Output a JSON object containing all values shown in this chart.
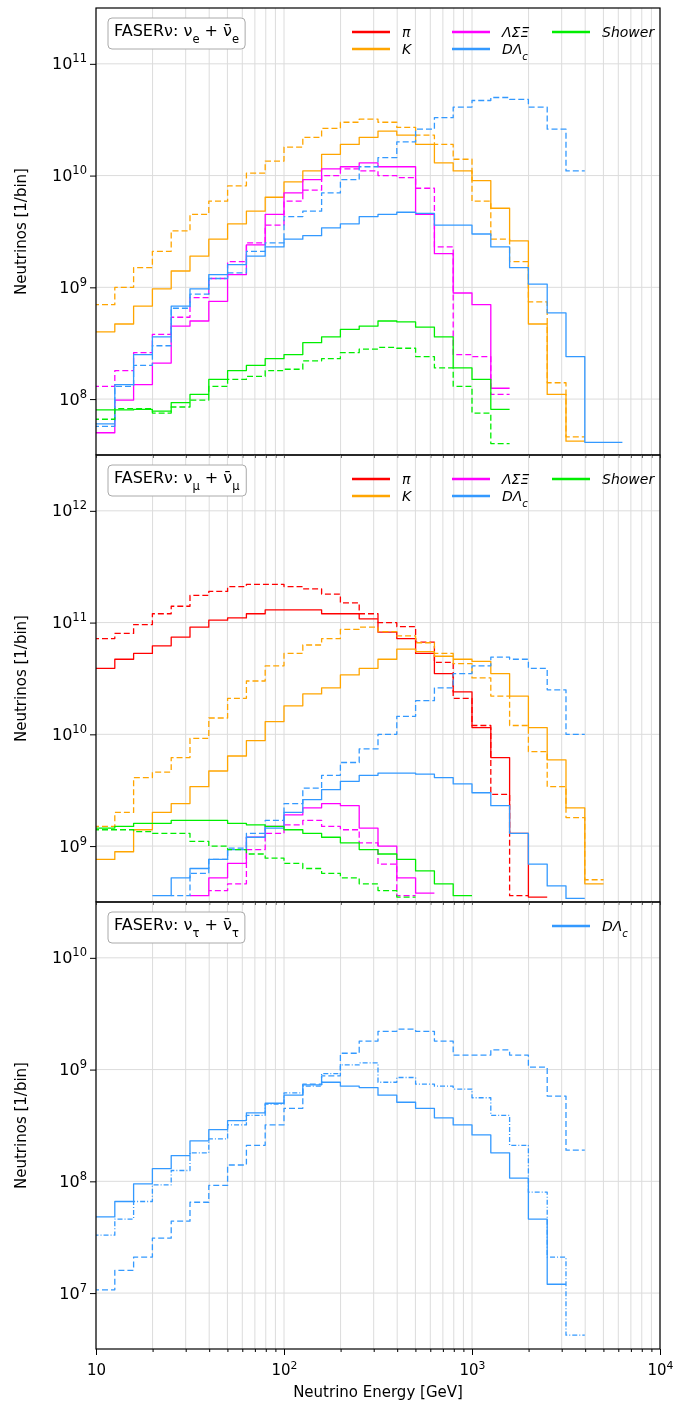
{
  "chart_data": [
    {
      "type": "step",
      "title": "FASERν: ν$_{e}$ + ν̄$_{e}$",
      "ylabel": "Neutrinos [1/bin]",
      "log": "xy",
      "grid": true,
      "legend": "top right",
      "tick_labels": "y",
      "x": [
        10,
        12.59,
        15.85,
        19.95,
        25.12,
        31.62,
        39.81,
        50.12,
        63.1,
        79.43,
        100,
        125.9,
        158.5,
        199.5,
        251.2,
        316.2,
        398.1,
        501.2,
        631,
        794.3,
        1000,
        1259,
        1585,
        1995,
        2512,
        3162,
        3981,
        5012,
        6310
      ],
      "xlim": [
        10,
        10000
      ],
      "ylim": [
        31600000.0,
        316000000000.0
      ],
      "xticks": [
        {
          "value": 10,
          "label": null
        },
        {
          "value": 20,
          "label": null
        },
        {
          "value": 30,
          "label": null
        },
        {
          "value": 40,
          "label": null
        },
        {
          "value": 50,
          "label": null
        },
        {
          "value": 60,
          "label": null
        },
        {
          "value": 70,
          "label": null
        },
        {
          "value": 80,
          "label": null
        },
        {
          "value": 90,
          "label": null
        },
        {
          "value": 100,
          "label": null
        },
        {
          "value": 200,
          "label": null
        },
        {
          "value": 300,
          "label": null
        },
        {
          "value": 400,
          "label": null
        },
        {
          "value": 500,
          "label": null
        },
        {
          "value": 600,
          "label": null
        },
        {
          "value": 700,
          "label": null
        },
        {
          "value": 800,
          "label": null
        },
        {
          "value": 900,
          "label": null
        },
        {
          "value": 1000,
          "label": null
        },
        {
          "value": 2000,
          "label": null
        },
        {
          "value": 3000,
          "label": null
        },
        {
          "value": 4000,
          "label": null
        },
        {
          "value": 5000,
          "label": null
        },
        {
          "value": 6000,
          "label": null
        },
        {
          "value": 7000,
          "label": null
        },
        {
          "value": 8000,
          "label": null
        },
        {
          "value": 9000,
          "label": null
        },
        {
          "value": 10000,
          "label": null
        }
      ],
      "yticks": [
        {
          "value": 100000000.0,
          "label": "10$^{8}$"
        },
        {
          "value": 1000000000.0,
          "label": "10$^{9}$"
        },
        {
          "value": 10000000000.0,
          "label": "10$^{10}$"
        },
        {
          "value": 100000000000.0,
          "label": "10$^{11}$"
        }
      ],
      "series": [
        {
          "name": "π",
          "color": "#ff0000",
          "line_style": "solid",
          "values": [
            null,
            null,
            null,
            null,
            null,
            null,
            null,
            null,
            null,
            null,
            null,
            null,
            null,
            null,
            null,
            null,
            null,
            null,
            null,
            null,
            null,
            null,
            null,
            null,
            null,
            null,
            null,
            null,
            null
          ]
        },
        {
          "name": "K",
          "color": "#ffa500",
          "line_style": "solid",
          "values": [
            400000000.0,
            470000000.0,
            680000000.0,
            970000000.0,
            1400000000.0,
            1900000000.0,
            2700000000.0,
            3700000000.0,
            4800000000.0,
            6400000000.0,
            8800000000.0,
            11000000000.0,
            15500000000.0,
            19000000000.0,
            22000000000.0,
            25000000000.0,
            23000000000.0,
            19000000000.0,
            13000000000.0,
            11000000000.0,
            9000000000.0,
            5100000000.0,
            2600000000.0,
            470000000.0,
            110000000.0,
            42000000.0,
            42000000.0,
            null,
            null
          ]
        },
        {
          "color": "#ffa500",
          "line_style": "dashed",
          "values": [
            700000000.0,
            1000000000.0,
            1500000000.0,
            2100000000.0,
            3200000000.0,
            4500000000.0,
            5900000000.0,
            8100000000.0,
            10500000000.0,
            13500000000.0,
            18000000000.0,
            22000000000.0,
            26500000000.0,
            30000000000.0,
            32000000000.0,
            30000000000.0,
            27000000000.0,
            23000000000.0,
            19000000000.0,
            14000000000.0,
            5900000000.0,
            2700000000.0,
            1700000000.0,
            740000000.0,
            140000000.0,
            46000000.0,
            46000000.0,
            null,
            null
          ]
        },
        {
          "name": "ΛΣΞ",
          "color": "#ff00ff",
          "line_style": "solid",
          "values": [
            50000000.0,
            98000000.0,
            135000000.0,
            210000000.0,
            450000000.0,
            500000000.0,
            750000000.0,
            1300000000.0,
            2400000000.0,
            4500000000.0,
            7000000000.0,
            9200000000.0,
            11500000000.0,
            12000000000.0,
            13000000000.0,
            12000000000.0,
            12000000000.0,
            4500000000.0,
            2000000000.0,
            890000000.0,
            700000000.0,
            125000000.0,
            125000000.0,
            null,
            null,
            null,
            null,
            null,
            null
          ]
        },
        {
          "color": "#ff00ff",
          "line_style": "dashed",
          "values": [
            130000000.0,
            180000000.0,
            260000000.0,
            380000000.0,
            540000000.0,
            810000000.0,
            1200000000.0,
            1700000000.0,
            2500000000.0,
            3600000000.0,
            5900000000.0,
            7400000000.0,
            10000000000.0,
            11500000000.0,
            11000000000.0,
            10000000000.0,
            9600000000.0,
            7700000000.0,
            2300000000.0,
            250000000.0,
            240000000.0,
            110000000.0,
            110000000.0,
            null,
            null,
            null,
            null,
            null,
            null
          ]
        },
        {
          "name": "DΛ$_{c}$",
          "color": "#3399ff",
          "line_style": "solid",
          "values": [
            60000000.0,
            135000000.0,
            250000000.0,
            360000000.0,
            680000000.0,
            970000000.0,
            1300000000.0,
            1600000000.0,
            1900000000.0,
            2300000000.0,
            2700000000.0,
            2900000000.0,
            3400000000.0,
            3700000000.0,
            4300000000.0,
            4500000000.0,
            4700000000.0,
            4600000000.0,
            3600000000.0,
            3600000000.0,
            3000000000.0,
            2300000000.0,
            1500000000.0,
            1070000000.0,
            590000000.0,
            240000000.0,
            41000000.0,
            41000000.0,
            41000000.0
          ]
        },
        {
          "color": "#3399ff",
          "line_style": "dashed",
          "values": [
            57000000.0,
            130000000.0,
            200000000.0,
            300000000.0,
            650000000.0,
            870000000.0,
            1200000000.0,
            1350000000.0,
            2100000000.0,
            2500000000.0,
            4300000000.0,
            4800000000.0,
            7000000000.0,
            9200000000.0,
            12000000000.0,
            14500000000.0,
            20000000000.0,
            26000000000.0,
            33000000000.0,
            41000000000.0,
            47000000000.0,
            50000000000.0,
            48000000000.0,
            41000000000.0,
            26000000000.0,
            11000000000.0,
            11000000000.0,
            null,
            null
          ]
        },
        {
          "name": "Shower",
          "color": "#00ee00",
          "line_style": "solid",
          "values": [
            80000000.0,
            80000000.0,
            81000000.0,
            78000000.0,
            93000000.0,
            110000000.0,
            150000000.0,
            180000000.0,
            200000000.0,
            230000000.0,
            250000000.0,
            320000000.0,
            360000000.0,
            420000000.0,
            450000000.0,
            500000000.0,
            490000000.0,
            440000000.0,
            360000000.0,
            190000000.0,
            150000000.0,
            81000000.0,
            81000000.0,
            null,
            null,
            null,
            null,
            null,
            null
          ]
        },
        {
          "color": "#00ee00",
          "line_style": "dashed",
          "values": [
            66000000.0,
            82000000.0,
            82000000.0,
            75000000.0,
            85000000.0,
            98000000.0,
            130000000.0,
            150000000.0,
            160000000.0,
            180000000.0,
            185000000.0,
            220000000.0,
            230000000.0,
            260000000.0,
            280000000.0,
            290000000.0,
            285000000.0,
            240000000.0,
            190000000.0,
            130000000.0,
            75000000.0,
            40000000.0,
            40000000.0,
            null,
            null,
            null,
            null,
            null,
            null
          ]
        }
      ]
    },
    {
      "type": "step",
      "title": "FASERν: ν$_{μ}$ + ν̄$_{μ}$",
      "ylabel": "Neutrinos [1/bin]",
      "log": "xy",
      "grid": true,
      "legend": "top right",
      "tick_labels": "y",
      "x": [
        10,
        12.59,
        15.85,
        19.95,
        25.12,
        31.62,
        39.81,
        50.12,
        63.1,
        79.43,
        100,
        125.9,
        158.5,
        199.5,
        251.2,
        316.2,
        398.1,
        501.2,
        631,
        794.3,
        1000,
        1259,
        1585,
        1995,
        2512,
        3162,
        3981,
        5012
      ],
      "xlim": [
        10,
        10000
      ],
      "ylim": [
        316000000.0,
        3160000000000.0
      ],
      "xticks": [
        {
          "value": 10,
          "label": null
        },
        {
          "value": 20,
          "label": null
        },
        {
          "value": 30,
          "label": null
        },
        {
          "value": 40,
          "label": null
        },
        {
          "value": 50,
          "label": null
        },
        {
          "value": 60,
          "label": null
        },
        {
          "value": 70,
          "label": null
        },
        {
          "value": 80,
          "label": null
        },
        {
          "value": 90,
          "label": null
        },
        {
          "value": 100,
          "label": null
        },
        {
          "value": 200,
          "label": null
        },
        {
          "value": 300,
          "label": null
        },
        {
          "value": 400,
          "label": null
        },
        {
          "value": 500,
          "label": null
        },
        {
          "value": 600,
          "label": null
        },
        {
          "value": 700,
          "label": null
        },
        {
          "value": 800,
          "label": null
        },
        {
          "value": 900,
          "label": null
        },
        {
          "value": 1000,
          "label": null
        },
        {
          "value": 2000,
          "label": null
        },
        {
          "value": 3000,
          "label": null
        },
        {
          "value": 4000,
          "label": null
        },
        {
          "value": 5000,
          "label": null
        },
        {
          "value": 6000,
          "label": null
        },
        {
          "value": 7000,
          "label": null
        },
        {
          "value": 8000,
          "label": null
        },
        {
          "value": 9000,
          "label": null
        },
        {
          "value": 10000,
          "label": null
        }
      ],
      "yticks": [
        {
          "value": 1000000000.0,
          "label": "10$^{9}$"
        },
        {
          "value": 10000000000.0,
          "label": "10$^{10}$"
        },
        {
          "value": 100000000000.0,
          "label": "10$^{11}$"
        },
        {
          "value": 1000000000000.0,
          "label": "10$^{12}$"
        }
      ],
      "series": [
        {
          "name": "π",
          "color": "#ff0000",
          "line_style": "solid",
          "values": [
            39000000000.0,
            47000000000.0,
            53000000000.0,
            62000000000.0,
            74000000000.0,
            91000000000.0,
            105000000000.0,
            110000000000.0,
            120000000000.0,
            130000000000.0,
            130000000000.0,
            130000000000.0,
            120000000000.0,
            120000000000.0,
            108000000000.0,
            82000000000.0,
            72000000000.0,
            53000000000.0,
            35000000000.0,
            24000000000.0,
            11500000000.0,
            6200000000.0,
            1300000000.0,
            350000000.0,
            350000000.0,
            null,
            null,
            null
          ]
        },
        {
          "color": "#ff0000",
          "line_style": "dashed",
          "values": [
            72000000000.0,
            80000000000.0,
            96000000000.0,
            120000000000.0,
            140000000000.0,
            175000000000.0,
            190000000000.0,
            210000000000.0,
            220000000000.0,
            220000000000.0,
            210000000000.0,
            200000000000.0,
            180000000000.0,
            150000000000.0,
            120000000000.0,
            100000000000.0,
            92000000000.0,
            67000000000.0,
            44000000000.0,
            21000000000.0,
            12000000000.0,
            2900000000.0,
            360000000.0,
            360000000.0,
            null,
            null,
            null,
            null
          ]
        },
        {
          "name": "K",
          "color": "#ffa500",
          "line_style": "solid",
          "values": [
            760000000.0,
            890000000.0,
            1400000000.0,
            2000000000.0,
            2400000000.0,
            3400000000.0,
            4700000000.0,
            6400000000.0,
            8800000000.0,
            13000000000.0,
            18000000000.0,
            23000000000.0,
            26000000000.0,
            34000000000.0,
            39000000000.0,
            47000000000.0,
            58000000000.0,
            55000000000.0,
            50000000000.0,
            47000000000.0,
            45000000000.0,
            35000000000.0,
            22000000000.0,
            11500000000.0,
            5900000000.0,
            2200000000.0,
            460000000.0,
            460000000.0
          ]
        },
        {
          "color": "#ffa500",
          "line_style": "dashed",
          "values": [
            1500000000.0,
            2000000000.0,
            4100000000.0,
            4600000000.0,
            6200000000.0,
            9200000000.0,
            14000000000.0,
            21000000000.0,
            30000000000.0,
            41000000000.0,
            53000000000.0,
            63000000000.0,
            72000000000.0,
            87000000000.0,
            91000000000.0,
            83000000000.0,
            76000000000.0,
            66000000000.0,
            53000000000.0,
            43000000000.0,
            32000000000.0,
            22000000000.0,
            12000000000.0,
            7000000000.0,
            3400000000.0,
            1800000000.0,
            500000000.0,
            500000000.0
          ]
        },
        {
          "name": "ΛΣΞ",
          "color": "#ff00ff",
          "line_style": "solid",
          "values": [
            null,
            null,
            null,
            null,
            null,
            360000000.0,
            520000000.0,
            700000000.0,
            1200000000.0,
            1500000000.0,
            1900000000.0,
            2200000000.0,
            2400000000.0,
            2300000000.0,
            1450000000.0,
            1000000000.0,
            520000000.0,
            380000000.0,
            380000000.0,
            null,
            null,
            null,
            null,
            null,
            null,
            null,
            null,
            null
          ]
        },
        {
          "color": "#ff00ff",
          "line_style": "dashed",
          "values": [
            null,
            null,
            null,
            null,
            null,
            null,
            400000000.0,
            460000000.0,
            930000000.0,
            1300000000.0,
            1550000000.0,
            1700000000.0,
            1500000000.0,
            1400000000.0,
            1070000000.0,
            690000000.0,
            360000000.0,
            360000000.0,
            null,
            null,
            null,
            null,
            null,
            null,
            null,
            null,
            null,
            null
          ]
        },
        {
          "name": "DΛ$_{c}$",
          "color": "#3399ff",
          "line_style": "solid",
          "values": [
            null,
            null,
            null,
            360000000.0,
            520000000.0,
            630000000.0,
            760000000.0,
            930000000.0,
            1200000000.0,
            1450000000.0,
            2000000000.0,
            2600000000.0,
            3200000000.0,
            3800000000.0,
            4300000000.0,
            4500000000.0,
            4500000000.0,
            4400000000.0,
            4100000000.0,
            3600000000.0,
            3000000000.0,
            2300000000.0,
            1300000000.0,
            690000000.0,
            440000000.0,
            340000000.0,
            340000000.0,
            null
          ]
        },
        {
          "color": "#3399ff",
          "line_style": "dashed",
          "values": [
            null,
            null,
            null,
            null,
            360000000.0,
            570000000.0,
            760000000.0,
            960000000.0,
            1300000000.0,
            1700000000.0,
            2400000000.0,
            3300000000.0,
            4300000000.0,
            5600000000.0,
            7400000000.0,
            10000000000.0,
            14500000000.0,
            20000000000.0,
            26000000000.0,
            35000000000.0,
            41000000000.0,
            49000000000.0,
            47000000000.0,
            39000000000.0,
            25000000000.0,
            10000000000.0,
            10000000000.0,
            null
          ]
        },
        {
          "name": "Shower",
          "color": "#00ee00",
          "line_style": "solid",
          "values": [
            1450000000.0,
            1500000000.0,
            1600000000.0,
            1600000000.0,
            1700000000.0,
            1700000000.0,
            1700000000.0,
            1600000000.0,
            1550000000.0,
            1500000000.0,
            1400000000.0,
            1300000000.0,
            1200000000.0,
            1070000000.0,
            930000000.0,
            850000000.0,
            760000000.0,
            600000000.0,
            460000000.0,
            360000000.0,
            360000000.0,
            null,
            null,
            null,
            null,
            null,
            null,
            null
          ]
        },
        {
          "color": "#00ee00",
          "line_style": "dashed",
          "values": [
            1400000000.0,
            1400000000.0,
            1350000000.0,
            1300000000.0,
            1300000000.0,
            1100000000.0,
            1000000000.0,
            930000000.0,
            850000000.0,
            780000000.0,
            700000000.0,
            630000000.0,
            570000000.0,
            520000000.0,
            460000000.0,
            400000000.0,
            350000000.0,
            350000000.0,
            null,
            null,
            null,
            null,
            null,
            null,
            null,
            null,
            null,
            null
          ]
        }
      ]
    },
    {
      "type": "step",
      "title": "FASERν: ν$_{τ}$ + ν̄$_{τ}$",
      "xlabel": "Neutrino Energy [GeV]",
      "ylabel": "Neutrinos [1/bin]",
      "log": "xy",
      "grid": true,
      "legend": "top right",
      "x": [
        10,
        12.59,
        15.85,
        19.95,
        25.12,
        31.62,
        39.81,
        50.12,
        63.1,
        79.43,
        100,
        125.9,
        158.5,
        199.5,
        251.2,
        316.2,
        398.1,
        501.2,
        631,
        794.3,
        1000,
        1259,
        1585,
        1995,
        2512,
        3162,
        3981
      ],
      "xlim": [
        10,
        10000
      ],
      "ylim": [
        3160000.0,
        31600000000.0
      ],
      "xticks": [
        {
          "value": 10,
          "label": "10"
        },
        {
          "value": 20,
          "label": null
        },
        {
          "value": 30,
          "label": null
        },
        {
          "value": 40,
          "label": null
        },
        {
          "value": 50,
          "label": null
        },
        {
          "value": 60,
          "label": null
        },
        {
          "value": 70,
          "label": null
        },
        {
          "value": 80,
          "label": null
        },
        {
          "value": 90,
          "label": null
        },
        {
          "value": 100,
          "label": "10$^{2}$"
        },
        {
          "value": 200,
          "label": null
        },
        {
          "value": 300,
          "label": null
        },
        {
          "value": 400,
          "label": null
        },
        {
          "value": 500,
          "label": null
        },
        {
          "value": 600,
          "label": null
        },
        {
          "value": 700,
          "label": null
        },
        {
          "value": 800,
          "label": null
        },
        {
          "value": 900,
          "label": null
        },
        {
          "value": 1000,
          "label": "10$^{3}$"
        },
        {
          "value": 2000,
          "label": null
        },
        {
          "value": 3000,
          "label": null
        },
        {
          "value": 4000,
          "label": null
        },
        {
          "value": 5000,
          "label": null
        },
        {
          "value": 6000,
          "label": null
        },
        {
          "value": 7000,
          "label": null
        },
        {
          "value": 8000,
          "label": null
        },
        {
          "value": 9000,
          "label": null
        },
        {
          "value": 10000,
          "label": "10$^{4}$"
        }
      ],
      "yticks": [
        {
          "value": 10000000.0,
          "label": "10$^{7}$"
        },
        {
          "value": 100000000.0,
          "label": "10$^{8}$"
        },
        {
          "value": 1000000000.0,
          "label": "10$^{9}$"
        },
        {
          "value": 10000000000.0,
          "label": "10$^{10}$"
        }
      ],
      "series": [
        {
          "name": "DΛ$_{c}$",
          "color": "#3399ff",
          "line_style": "solid",
          "values": [
            48000000.0,
            66000000.0,
            95000000.0,
            130000000.0,
            170000000.0,
            230000000.0,
            290000000.0,
            350000000.0,
            410000000.0,
            500000000.0,
            590000000.0,
            730000000.0,
            770000000.0,
            710000000.0,
            690000000.0,
            590000000.0,
            510000000.0,
            450000000.0,
            370000000.0,
            320000000.0,
            260000000.0,
            180000000.0,
            107000000.0,
            46000000.0,
            12000000.0,
            12000000.0,
            null
          ]
        },
        {
          "color": "#3399ff",
          "line_style": "dashed",
          "values": [
            10700000.0,
            16000000.0,
            21000000.0,
            31000000.0,
            44000000.0,
            65000000.0,
            92000000.0,
            140000000.0,
            210000000.0,
            320000000.0,
            450000000.0,
            740000000.0,
            880000000.0,
            1400000000.0,
            1800000000.0,
            2200000000.0,
            2300000000.0,
            2200000000.0,
            1800000000.0,
            1350000000.0,
            1350000000.0,
            1500000000.0,
            1350000000.0,
            1050000000.0,
            580000000.0,
            190000000.0,
            190000000.0
          ]
        },
        {
          "color": "#3399ff",
          "line_style": "dotted",
          "values": [
            33000000.0,
            46000000.0,
            66000000.0,
            93000000.0,
            125000000.0,
            180000000.0,
            240000000.0,
            320000000.0,
            390000000.0,
            490000000.0,
            620000000.0,
            710000000.0,
            920000000.0,
            1100000000.0,
            1150000000.0,
            770000000.0,
            850000000.0,
            740000000.0,
            710000000.0,
            670000000.0,
            560000000.0,
            390000000.0,
            210000000.0,
            80000000.0,
            21000000.0,
            4200000.0,
            4200000.0
          ]
        }
      ]
    }
  ]
}
